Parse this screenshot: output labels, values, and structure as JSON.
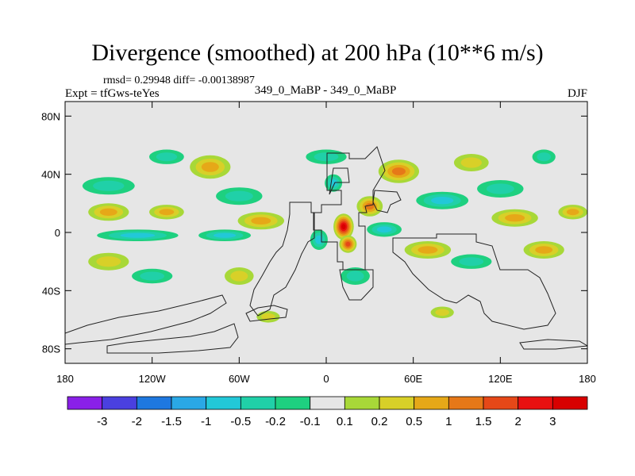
{
  "chart_data": {
    "type": "heatmap",
    "title": "Divergence (smoothed) at 200 hPa (10**6 m/s)",
    "stats_label": "rmsd= 0.29948 diff= -0.00138987",
    "experiment_label": "Expt = tfGws-teYes",
    "case_label": "349_0_MaBP - 349_0_MaBP",
    "season_label": "DJF",
    "x_axis": {
      "range": [
        -180,
        180
      ],
      "ticks": [
        {
          "value": -180,
          "label": "180"
        },
        {
          "value": -120,
          "label": "120W"
        },
        {
          "value": -60,
          "label": "60W"
        },
        {
          "value": 0,
          "label": "0"
        },
        {
          "value": 60,
          "label": "60E"
        },
        {
          "value": 120,
          "label": "120E"
        },
        {
          "value": 180,
          "label": "180"
        }
      ]
    },
    "y_axis": {
      "range": [
        -90,
        90
      ],
      "ticks": [
        {
          "value": 80,
          "label": "80N"
        },
        {
          "value": 40,
          "label": "40N"
        },
        {
          "value": 0,
          "label": "0"
        },
        {
          "value": -40,
          "label": "40S"
        },
        {
          "value": -80,
          "label": "80S"
        }
      ]
    },
    "colorbar": {
      "labels": [
        "-3",
        "-2",
        "-1.5",
        "-1",
        "-0.5",
        "-0.2",
        "-0.1",
        "0.1",
        "0.2",
        "0.5",
        "1",
        "1.5",
        "2",
        "3"
      ],
      "colors": [
        "#8a20e8",
        "#4a40e0",
        "#1e78e0",
        "#2aa8e6",
        "#22c8d8",
        "#20d0a8",
        "#1ed080",
        "#e6e6e6",
        "#a8d838",
        "#d8d028",
        "#e6a818",
        "#e67818",
        "#e64818",
        "#e81010",
        "#d80000"
      ]
    },
    "features": [
      {
        "lon": 12,
        "lat": 4,
        "rx": 7,
        "ry": 9,
        "v": 3.2
      },
      {
        "lon": 15,
        "lat": -8,
        "rx": 6,
        "ry": 6,
        "v": 1.6
      },
      {
        "lon": 50,
        "lat": 42,
        "rx": 14,
        "ry": 8,
        "v": 1.2
      },
      {
        "lon": 30,
        "lat": 18,
        "rx": 9,
        "ry": 7,
        "v": 1.0
      },
      {
        "lon": -45,
        "lat": 8,
        "rx": 16,
        "ry": 6,
        "v": 0.6
      },
      {
        "lon": -150,
        "lat": 14,
        "rx": 14,
        "ry": 6,
        "v": 0.8
      },
      {
        "lon": -110,
        "lat": 14,
        "rx": 12,
        "ry": 5,
        "v": 0.9
      },
      {
        "lon": 130,
        "lat": 10,
        "rx": 16,
        "ry": 6,
        "v": 0.7
      },
      {
        "lon": 170,
        "lat": 14,
        "rx": 10,
        "ry": 5,
        "v": 0.5
      },
      {
        "lon": -80,
        "lat": 45,
        "rx": 14,
        "ry": 8,
        "v": 0.6
      },
      {
        "lon": 100,
        "lat": 48,
        "rx": 12,
        "ry": 6,
        "v": 0.4
      },
      {
        "lon": 70,
        "lat": -12,
        "rx": 16,
        "ry": 6,
        "v": 0.5
      },
      {
        "lon": 150,
        "lat": -12,
        "rx": 14,
        "ry": 6,
        "v": 0.5
      },
      {
        "lon": -150,
        "lat": -20,
        "rx": 14,
        "ry": 6,
        "v": 0.3
      },
      {
        "lon": -60,
        "lat": -30,
        "rx": 10,
        "ry": 6,
        "v": 0.3
      },
      {
        "lon": -40,
        "lat": -58,
        "rx": 8,
        "ry": 4,
        "v": 0.3
      },
      {
        "lon": 80,
        "lat": -55,
        "rx": 8,
        "ry": 4,
        "v": 0.3
      },
      {
        "lon": 5,
        "lat": 34,
        "rx": 6,
        "ry": 6,
        "v": -0.8
      },
      {
        "lon": -5,
        "lat": -5,
        "rx": 6,
        "ry": 7,
        "v": -0.9
      },
      {
        "lon": 40,
        "lat": 2,
        "rx": 12,
        "ry": 5,
        "v": -0.7
      },
      {
        "lon": 80,
        "lat": 22,
        "rx": 18,
        "ry": 6,
        "v": -0.5
      },
      {
        "lon": 120,
        "lat": 30,
        "rx": 16,
        "ry": 6,
        "v": -0.4
      },
      {
        "lon": -130,
        "lat": -2,
        "rx": 28,
        "ry": 4,
        "v": -0.7
      },
      {
        "lon": -70,
        "lat": -2,
        "rx": 18,
        "ry": 4,
        "v": -0.5
      },
      {
        "lon": -150,
        "lat": 32,
        "rx": 18,
        "ry": 6,
        "v": -0.4
      },
      {
        "lon": -60,
        "lat": 25,
        "rx": 16,
        "ry": 6,
        "v": -0.4
      },
      {
        "lon": -110,
        "lat": 52,
        "rx": 12,
        "ry": 5,
        "v": -0.3
      },
      {
        "lon": 0,
        "lat": 52,
        "rx": 14,
        "ry": 5,
        "v": -0.3
      },
      {
        "lon": 150,
        "lat": 52,
        "rx": 8,
        "ry": 5,
        "v": -0.3
      },
      {
        "lon": 100,
        "lat": -20,
        "rx": 14,
        "ry": 5,
        "v": -0.3
      },
      {
        "lon": -120,
        "lat": -30,
        "rx": 14,
        "ry": 5,
        "v": -0.3
      },
      {
        "lon": 20,
        "lat": -30,
        "rx": 10,
        "ry": 6,
        "v": -0.3
      }
    ]
  }
}
